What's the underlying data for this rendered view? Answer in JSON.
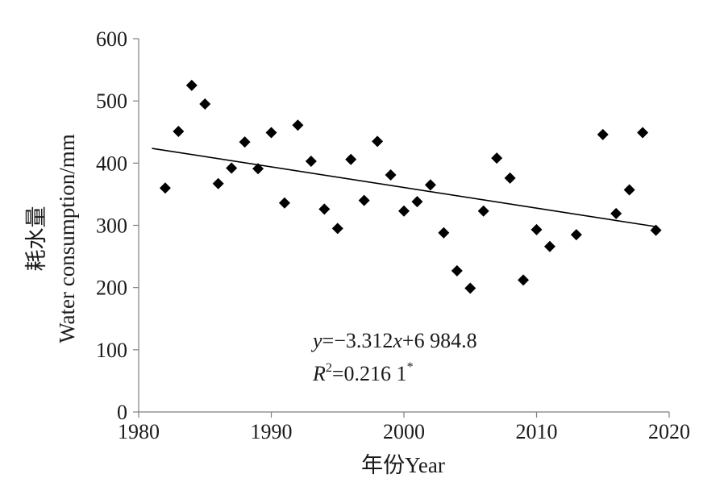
{
  "chart_data": {
    "type": "scatter",
    "xlabel": "年份Year",
    "ylabel_cn": "耗水量",
    "ylabel_en": "Water consumption/mm",
    "xlim": [
      1980,
      2020
    ],
    "ylim": [
      0,
      600
    ],
    "xticks": [
      1980,
      1990,
      2000,
      2010,
      2020
    ],
    "yticks": [
      0,
      100,
      200,
      300,
      400,
      500,
      600
    ],
    "grid": false,
    "marker": "diamond",
    "points": [
      {
        "x": 1982,
        "y": 360
      },
      {
        "x": 1983,
        "y": 451
      },
      {
        "x": 1984,
        "y": 525
      },
      {
        "x": 1985,
        "y": 495
      },
      {
        "x": 1986,
        "y": 367
      },
      {
        "x": 1987,
        "y": 392
      },
      {
        "x": 1988,
        "y": 434
      },
      {
        "x": 1989,
        "y": 391
      },
      {
        "x": 1990,
        "y": 449
      },
      {
        "x": 1991,
        "y": 336
      },
      {
        "x": 1992,
        "y": 461
      },
      {
        "x": 1993,
        "y": 403
      },
      {
        "x": 1994,
        "y": 326
      },
      {
        "x": 1995,
        "y": 295
      },
      {
        "x": 1996,
        "y": 406
      },
      {
        "x": 1997,
        "y": 340
      },
      {
        "x": 1998,
        "y": 435
      },
      {
        "x": 1999,
        "y": 381
      },
      {
        "x": 2000,
        "y": 323
      },
      {
        "x": 2001,
        "y": 338
      },
      {
        "x": 2002,
        "y": 365
      },
      {
        "x": 2003,
        "y": 288
      },
      {
        "x": 2004,
        "y": 227
      },
      {
        "x": 2005,
        "y": 199
      },
      {
        "x": 2006,
        "y": 323
      },
      {
        "x": 2007,
        "y": 408
      },
      {
        "x": 2008,
        "y": 376
      },
      {
        "x": 2009,
        "y": 212
      },
      {
        "x": 2010,
        "y": 293
      },
      {
        "x": 2011,
        "y": 266
      },
      {
        "x": 2013,
        "y": 285
      },
      {
        "x": 2015,
        "y": 446
      },
      {
        "x": 2016,
        "y": 319
      },
      {
        "x": 2017,
        "y": 357
      },
      {
        "x": 2018,
        "y": 449
      },
      {
        "x": 2019,
        "y": 292
      }
    ],
    "trendline": {
      "slope": -3.312,
      "intercept": 6984.8,
      "x_range": [
        1981,
        2019
      ]
    },
    "annotation": {
      "equation": {
        "y": "y",
        "rest": "=−3.312",
        "x": "x",
        "tail": "+6 984.8"
      },
      "r2": {
        "r": "R",
        "sup": "2",
        "rest": "=0.216 1",
        "star": "*"
      }
    }
  }
}
